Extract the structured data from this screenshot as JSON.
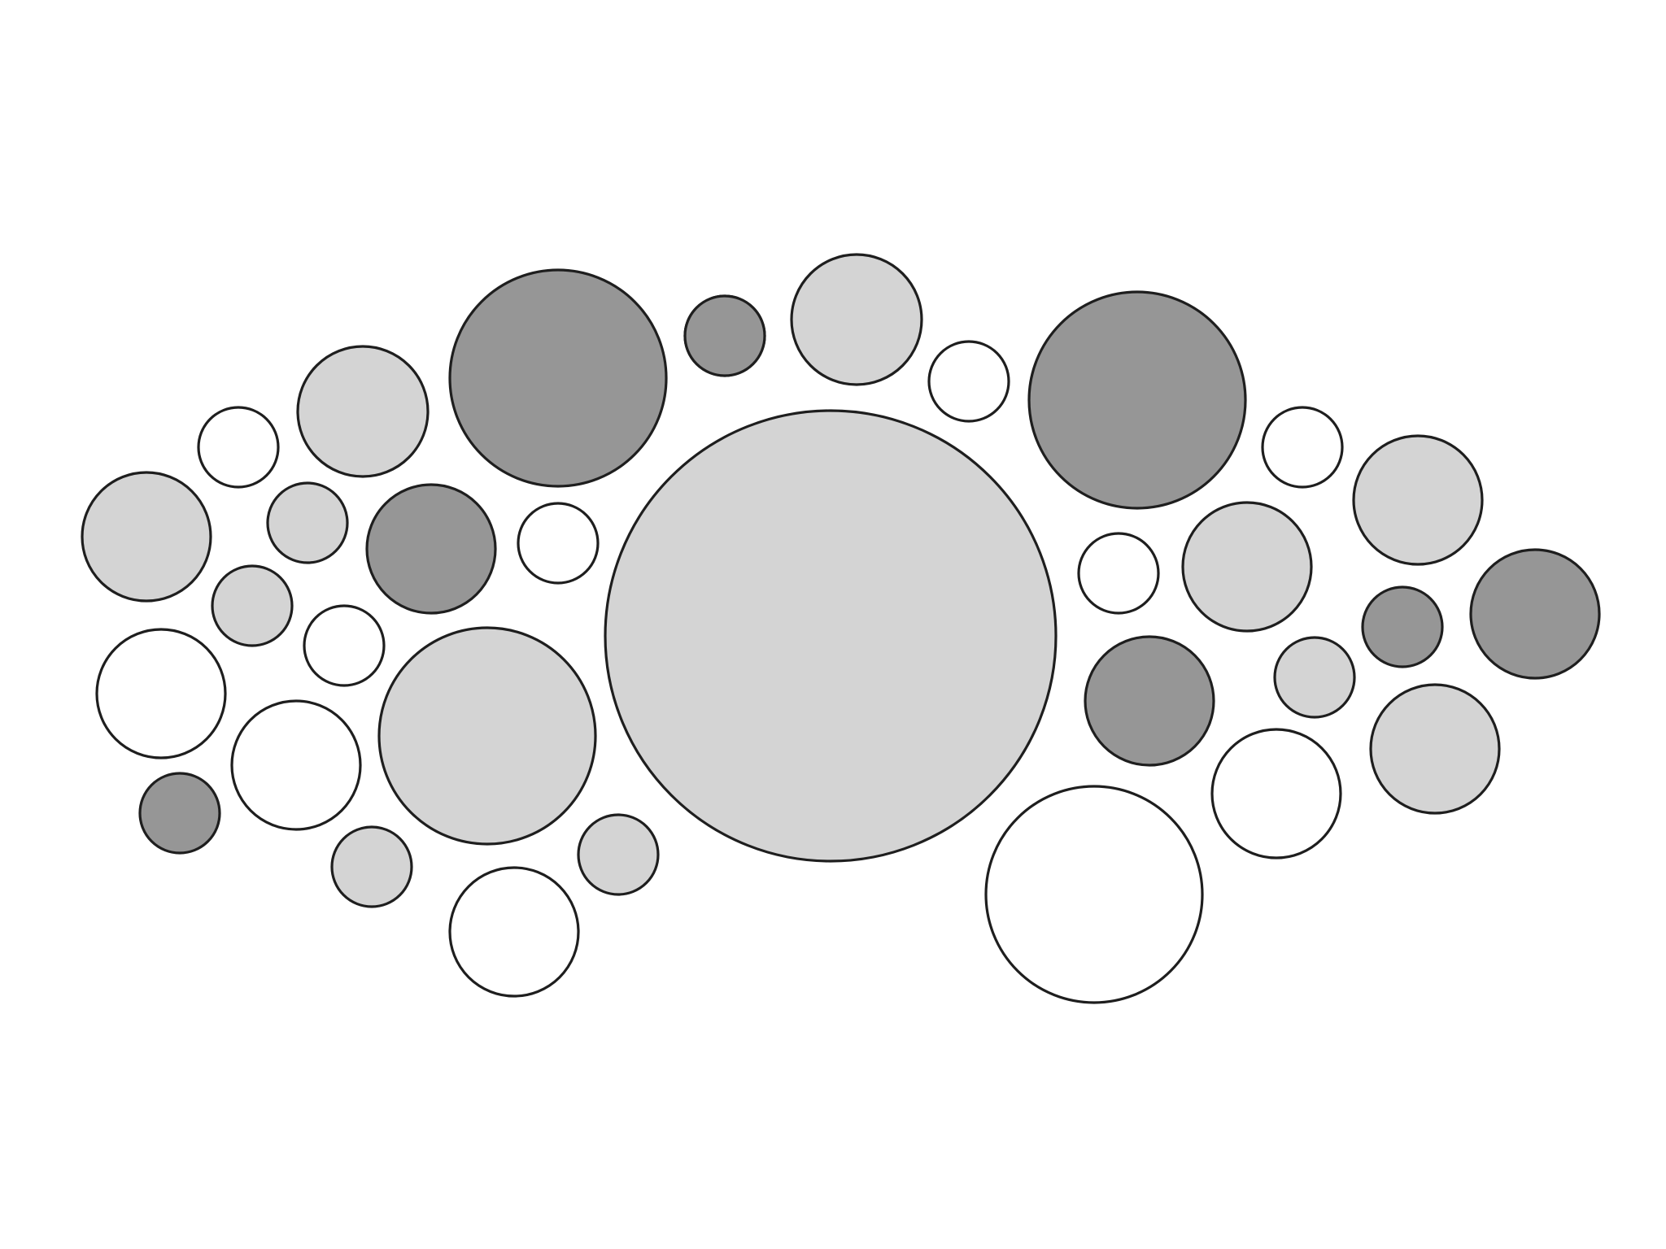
{
  "colors": {
    "background": "#ffffff",
    "outline": "#1e1e1e",
    "white": "#ffffff",
    "light": "#d4d4d4",
    "dark": "#969696"
  },
  "bubble_fills": [
    "light",
    "white",
    "light",
    "dark",
    "white",
    "light",
    "dark",
    "white",
    "white",
    "dark",
    "light",
    "dark",
    "light",
    "white",
    "light",
    "white",
    "light",
    "dark",
    "white",
    "light",
    "dark",
    "dark",
    "white",
    "light",
    "white",
    "light",
    "white",
    "light",
    "dark",
    "white",
    "light",
    "dark",
    "light",
    "white",
    "dark",
    "light",
    "white"
  ]
}
